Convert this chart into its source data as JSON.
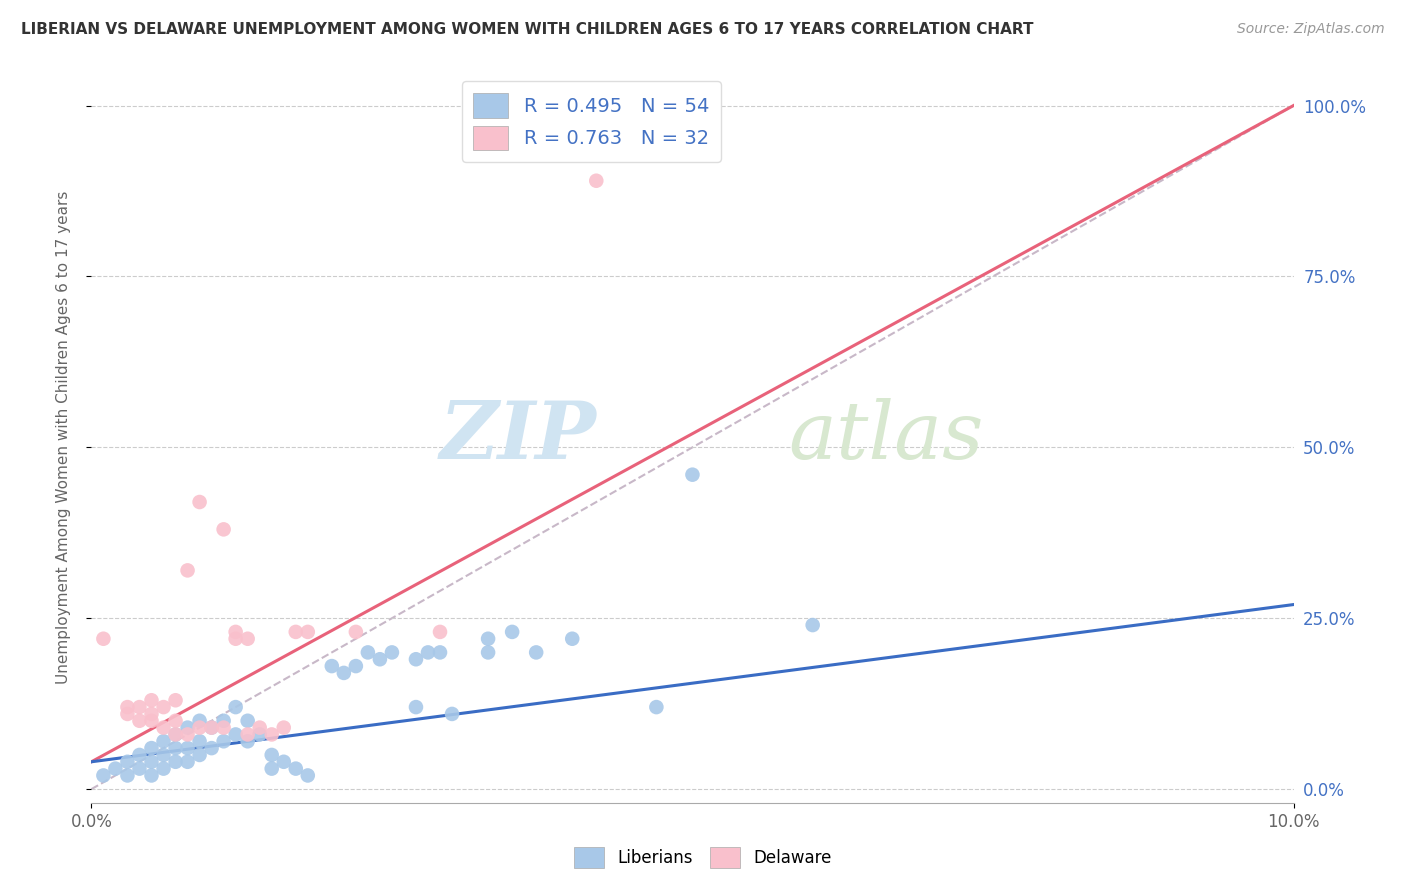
{
  "title": "LIBERIAN VS DELAWARE UNEMPLOYMENT AMONG WOMEN WITH CHILDREN AGES 6 TO 17 YEARS CORRELATION CHART",
  "source": "Source: ZipAtlas.com",
  "ylabel": "Unemployment Among Women with Children Ages 6 to 17 years",
  "background_color": "#ffffff",
  "grid_color": "#cccccc",
  "watermark_zip": "ZIP",
  "watermark_atlas": "atlas",
  "legend_blue_label": "R = 0.495   N = 54",
  "legend_pink_label": "R = 0.763   N = 32",
  "legend_bottom_blue": "Liberians",
  "legend_bottom_pink": "Delaware",
  "blue_color": "#a8c8e8",
  "pink_color": "#f9c0cc",
  "blue_line_color": "#3a6cc4",
  "pink_line_color": "#e8627a",
  "diagonal_color": "#c8b8c8",
  "title_color": "#333333",
  "right_axis_color": "#4472c4",
  "xlim": [
    0.0,
    0.1
  ],
  "ylim": [
    -0.02,
    1.05
  ],
  "blue_scatter": [
    [
      0.001,
      0.02
    ],
    [
      0.002,
      0.03
    ],
    [
      0.003,
      0.04
    ],
    [
      0.003,
      0.02
    ],
    [
      0.004,
      0.05
    ],
    [
      0.004,
      0.03
    ],
    [
      0.005,
      0.06
    ],
    [
      0.005,
      0.04
    ],
    [
      0.005,
      0.02
    ],
    [
      0.006,
      0.07
    ],
    [
      0.006,
      0.05
    ],
    [
      0.006,
      0.03
    ],
    [
      0.007,
      0.08
    ],
    [
      0.007,
      0.06
    ],
    [
      0.007,
      0.04
    ],
    [
      0.008,
      0.09
    ],
    [
      0.008,
      0.06
    ],
    [
      0.008,
      0.04
    ],
    [
      0.009,
      0.1
    ],
    [
      0.009,
      0.07
    ],
    [
      0.009,
      0.05
    ],
    [
      0.01,
      0.09
    ],
    [
      0.01,
      0.06
    ],
    [
      0.011,
      0.1
    ],
    [
      0.011,
      0.07
    ],
    [
      0.012,
      0.12
    ],
    [
      0.012,
      0.08
    ],
    [
      0.013,
      0.1
    ],
    [
      0.013,
      0.07
    ],
    [
      0.014,
      0.08
    ],
    [
      0.015,
      0.05
    ],
    [
      0.015,
      0.03
    ],
    [
      0.016,
      0.04
    ],
    [
      0.017,
      0.03
    ],
    [
      0.018,
      0.02
    ],
    [
      0.02,
      0.18
    ],
    [
      0.021,
      0.17
    ],
    [
      0.022,
      0.18
    ],
    [
      0.023,
      0.2
    ],
    [
      0.024,
      0.19
    ],
    [
      0.025,
      0.2
    ],
    [
      0.027,
      0.19
    ],
    [
      0.027,
      0.12
    ],
    [
      0.028,
      0.2
    ],
    [
      0.029,
      0.2
    ],
    [
      0.03,
      0.11
    ],
    [
      0.033,
      0.2
    ],
    [
      0.033,
      0.22
    ],
    [
      0.035,
      0.23
    ],
    [
      0.037,
      0.2
    ],
    [
      0.04,
      0.22
    ],
    [
      0.047,
      0.12
    ],
    [
      0.05,
      0.46
    ],
    [
      0.06,
      0.24
    ]
  ],
  "pink_scatter": [
    [
      0.001,
      0.22
    ],
    [
      0.003,
      0.12
    ],
    [
      0.003,
      0.11
    ],
    [
      0.004,
      0.12
    ],
    [
      0.004,
      0.1
    ],
    [
      0.005,
      0.13
    ],
    [
      0.005,
      0.1
    ],
    [
      0.005,
      0.11
    ],
    [
      0.006,
      0.12
    ],
    [
      0.006,
      0.09
    ],
    [
      0.007,
      0.13
    ],
    [
      0.007,
      0.1
    ],
    [
      0.007,
      0.08
    ],
    [
      0.008,
      0.32
    ],
    [
      0.008,
      0.08
    ],
    [
      0.009,
      0.42
    ],
    [
      0.009,
      0.09
    ],
    [
      0.01,
      0.09
    ],
    [
      0.011,
      0.38
    ],
    [
      0.011,
      0.09
    ],
    [
      0.012,
      0.23
    ],
    [
      0.012,
      0.22
    ],
    [
      0.013,
      0.22
    ],
    [
      0.013,
      0.08
    ],
    [
      0.014,
      0.09
    ],
    [
      0.015,
      0.08
    ],
    [
      0.016,
      0.09
    ],
    [
      0.017,
      0.23
    ],
    [
      0.018,
      0.23
    ],
    [
      0.022,
      0.23
    ],
    [
      0.029,
      0.23
    ],
    [
      0.042,
      0.89
    ]
  ],
  "blue_line_x": [
    0.0,
    0.1
  ],
  "blue_line_y": [
    0.04,
    0.27
  ],
  "pink_line_x": [
    0.0,
    0.1
  ],
  "pink_line_y": [
    0.04,
    1.0
  ],
  "diag_line_x": [
    0.0,
    0.1
  ],
  "diag_line_y": [
    0.0,
    1.0
  ]
}
